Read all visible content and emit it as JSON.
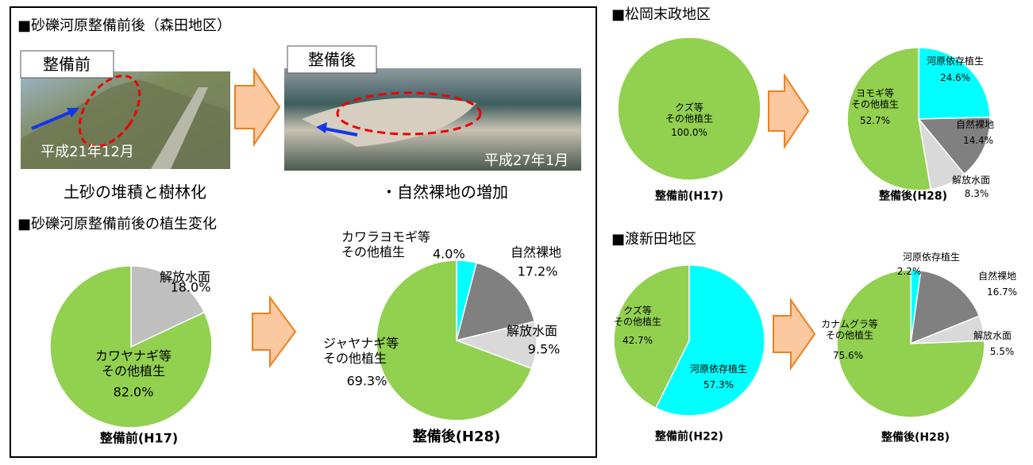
{
  "sections": {
    "morita": {
      "title": "■砂礫河原整備前後（森田地区）",
      "photo_before": {
        "label": "整備前",
        "date": "平成21年12月",
        "caption": "土砂の堆積と樹林化"
      },
      "photo_after": {
        "label": "整備後",
        "date": "平成27年1月",
        "caption": "・自然裸地の増加"
      },
      "vegetation_title": "■砂礫河原整備前後の植生変化"
    },
    "matsuoka": {
      "title": "■松岡末政地区"
    },
    "watarishinden": {
      "title": "■渡新田地区"
    }
  },
  "chart_data": [
    {
      "type": "pie",
      "title": "整備前(H17)",
      "categories": [
        "解放水面",
        "カワヤナギ等\nその他植生"
      ],
      "values": [
        18.0,
        82.0
      ],
      "value_labels": [
        "18.0%",
        "82.0%"
      ],
      "colors": [
        "#bfbfbf",
        "#92d050"
      ]
    },
    {
      "type": "pie",
      "title": "整備後(H28)",
      "categories": [
        "カワラヨモギ等\nその他植生",
        "自然裸地",
        "解放水面",
        "ジャヤナギ等\nその他植生"
      ],
      "values": [
        4.0,
        17.2,
        9.5,
        69.3
      ],
      "value_labels": [
        "4.0%",
        "17.2%",
        "9.5%",
        "69.3%"
      ],
      "colors": [
        "#00ffff",
        "#808080",
        "#d9d9d9",
        "#92d050"
      ]
    },
    {
      "type": "pie",
      "title": "整備前(H17)",
      "categories": [
        "クズ等\nその他植生"
      ],
      "values": [
        100.0
      ],
      "value_labels": [
        "100.0%"
      ],
      "colors": [
        "#92d050"
      ]
    },
    {
      "type": "pie",
      "title": "整備後(H28)",
      "categories": [
        "河原依存植生",
        "自然裸地",
        "解放水面",
        "ヨモギ等\nその他植生"
      ],
      "values": [
        24.6,
        14.4,
        8.3,
        52.7
      ],
      "value_labels": [
        "24.6%",
        "14.4%",
        "8.3%",
        "52.7%"
      ],
      "colors": [
        "#00ffff",
        "#808080",
        "#d9d9d9",
        "#92d050"
      ]
    },
    {
      "type": "pie",
      "title": "整備前(H22)",
      "categories": [
        "河原依存植生",
        "クズ等\nその他植生"
      ],
      "values": [
        57.3,
        42.7
      ],
      "value_labels": [
        "57.3%",
        "42.7%"
      ],
      "colors": [
        "#00ffff",
        "#92d050"
      ]
    },
    {
      "type": "pie",
      "title": "整備後(H28)",
      "categories": [
        "河原依存植生",
        "自然裸地",
        "解放水面",
        "カナムグラ等\nその他植生"
      ],
      "values": [
        2.2,
        16.7,
        5.5,
        75.6
      ],
      "value_labels": [
        "2.2%",
        "16.7%",
        "5.5%",
        "75.6%"
      ],
      "colors": [
        "#00ffff",
        "#808080",
        "#d9d9d9",
        "#92d050"
      ]
    }
  ]
}
